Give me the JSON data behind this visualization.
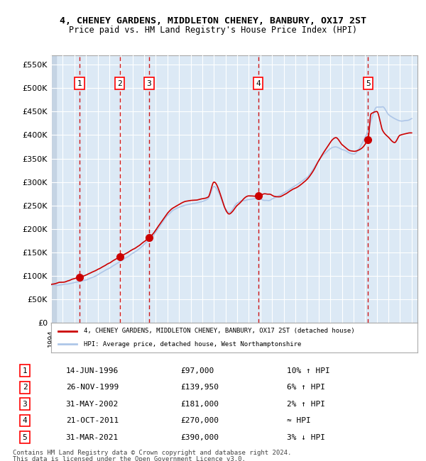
{
  "title1": "4, CHENEY GARDENS, MIDDLETON CHENEY, BANBURY, OX17 2ST",
  "title2": "Price paid vs. HM Land Registry's House Price Index (HPI)",
  "ylabel": "",
  "xlabel": "",
  "ylim": [
    0,
    570000
  ],
  "yticks": [
    0,
    50000,
    100000,
    150000,
    200000,
    250000,
    300000,
    350000,
    400000,
    450000,
    500000,
    550000
  ],
  "ytick_labels": [
    "£0",
    "£50K",
    "£100K",
    "£150K",
    "£200K",
    "£250K",
    "£300K",
    "£350K",
    "£400K",
    "£450K",
    "£500K",
    "£550K"
  ],
  "year_start": 1994,
  "year_end": 2025,
  "hpi_color": "#aec6e8",
  "price_color": "#cc0000",
  "sale_marker_color": "#cc0000",
  "dashed_line_color": "#cc0000",
  "bg_color": "#dce9f5",
  "grid_color": "#ffffff",
  "hatch_color": "#c8d8e8",
  "sales": [
    {
      "date": "1996-06-14",
      "price": 97000,
      "label": "1",
      "relation": "10% ↑ HPI"
    },
    {
      "date": "1999-11-26",
      "price": 139950,
      "label": "2",
      "relation": "6% ↑ HPI"
    },
    {
      "date": "2002-05-31",
      "price": 181000,
      "label": "3",
      "relation": "2% ↑ HPI"
    },
    {
      "date": "2011-10-21",
      "price": 270000,
      "label": "4",
      "relation": "≈ HPI"
    },
    {
      "date": "2021-03-31",
      "price": 390000,
      "label": "5",
      "relation": "3% ↓ HPI"
    }
  ],
  "legend_label1": "4, CHENEY GARDENS, MIDDLETON CHENEY, BANBURY, OX17 2ST (detached house)",
  "legend_label2": "HPI: Average price, detached house, West Northamptonshire",
  "footer1": "Contains HM Land Registry data © Crown copyright and database right 2024.",
  "footer2": "This data is licensed under the Open Government Licence v3.0."
}
